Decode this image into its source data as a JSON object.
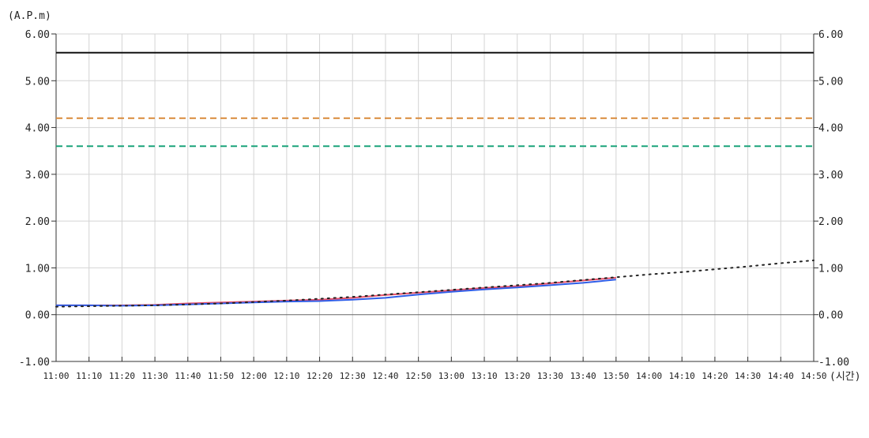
{
  "chart_data": {
    "type": "line",
    "title": "",
    "ylabel": "(A.P.m)",
    "xlabel": "(시간)",
    "ylim": [
      -1.0,
      6.0
    ],
    "yticks": [
      "6.00",
      "5.00",
      "4.00",
      "3.00",
      "2.00",
      "1.00",
      "0.00",
      "-1.00"
    ],
    "ytick_values": [
      6,
      5,
      4,
      3,
      2,
      1,
      0,
      -1
    ],
    "x": [
      "11:00",
      "11:10",
      "11:20",
      "11:30",
      "11:40",
      "11:50",
      "12:00",
      "12:10",
      "12:20",
      "12:30",
      "12:40",
      "12:50",
      "13:00",
      "13:10",
      "13:20",
      "13:30",
      "13:40",
      "13:50",
      "14:00",
      "14:10",
      "14:20",
      "14:30",
      "14:40",
      "14:50"
    ],
    "grid": true,
    "dual_y_axis": true,
    "reference_lines": [
      {
        "value": 5.6,
        "color": "#111111",
        "style": "solid"
      },
      {
        "value": 4.2,
        "color": "#d98a3a",
        "style": "dashed"
      },
      {
        "value": 3.6,
        "color": "#1aa37a",
        "style": "dashed"
      }
    ],
    "series": [
      {
        "color": "#e8506a",
        "style": "solid",
        "values": [
          0.2,
          0.2,
          0.2,
          0.21,
          0.24,
          0.26,
          0.28,
          0.3,
          0.32,
          0.36,
          0.42,
          0.47,
          0.52,
          0.57,
          0.61,
          0.67,
          0.73,
          0.79,
          null,
          null,
          null,
          null,
          null,
          null
        ]
      },
      {
        "color": "#2f5ee8",
        "style": "solid",
        "values": [
          0.2,
          0.2,
          0.19,
          0.2,
          0.22,
          0.24,
          0.26,
          0.28,
          0.29,
          0.32,
          0.36,
          0.43,
          0.49,
          0.54,
          0.58,
          0.63,
          0.68,
          0.75,
          null,
          null,
          null,
          null,
          null,
          null
        ]
      },
      {
        "color": "#222222",
        "style": "dotted",
        "values": [
          0.17,
          0.18,
          0.19,
          0.2,
          0.22,
          0.24,
          0.27,
          0.3,
          0.34,
          0.38,
          0.43,
          0.48,
          0.53,
          0.58,
          0.63,
          0.68,
          0.74,
          0.8,
          0.86,
          0.91,
          0.97,
          1.03,
          1.1,
          1.16
        ]
      }
    ]
  }
}
